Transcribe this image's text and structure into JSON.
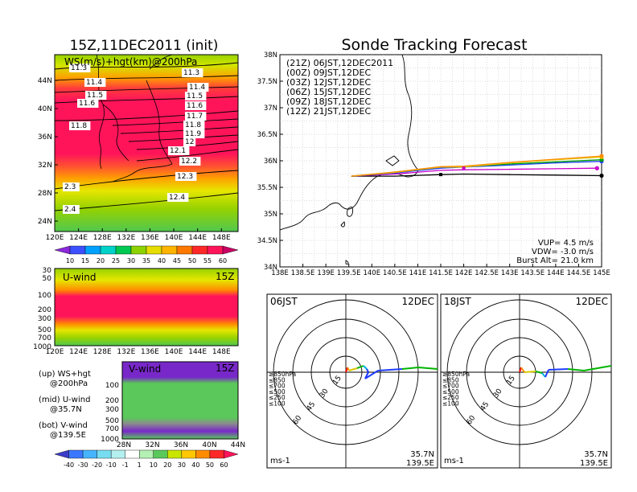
{
  "left_title": "15Z,11DEC2011 (init)",
  "right_title": "Sonde Tracking Forecast",
  "map_panel": {
    "label": "WS(m/s)+hgt(km)@200hPa",
    "lon_ticks": [
      "120E",
      "124E",
      "128E",
      "132E",
      "136E",
      "140E",
      "144E",
      "148E"
    ],
    "lat_ticks": [
      "44N",
      "40N",
      "36N",
      "32N",
      "28N",
      "24N"
    ],
    "contour_labels": [
      "11.3",
      "11.4",
      "11.5",
      "11.6",
      "11.8",
      "11.3",
      "11.4",
      "11.5",
      "11.6",
      "11.7",
      "11.8",
      "11.9",
      "12",
      "12.1",
      "12.2",
      "12.3",
      "2.3",
      "12.4",
      "2.4"
    ]
  },
  "speed_colorbar": [
    "10",
    "15",
    "20",
    "25",
    "30",
    "35",
    "40",
    "45",
    "50",
    "55",
    "60"
  ],
  "uwind_panel": {
    "label": "U-wind",
    "time": "15Z",
    "p_ticks": [
      "30",
      "50",
      "100",
      "200",
      "300",
      "500",
      "700",
      "1000"
    ],
    "lon_ticks": [
      "120E",
      "124E",
      "128E",
      "132E",
      "136E",
      "140E",
      "144E",
      "148E"
    ]
  },
  "vwind_panel": {
    "label": "V-wind",
    "time": "15Z",
    "p_ticks": [
      "100",
      "200",
      "300",
      "500",
      "700",
      "1000"
    ],
    "lat_ticks": [
      "28N",
      "32N",
      "36N",
      "40N",
      "44N"
    ]
  },
  "wind_colorbar": [
    "-40",
    "-30",
    "-20",
    "-10",
    "-1",
    "1",
    "10",
    "20",
    "30",
    "40",
    "50",
    "60"
  ],
  "legend_notes": [
    {
      "l1": "(up) WS+hgt",
      "l2": "@200hPa"
    },
    {
      "l1": "(mid) U-wind",
      "l2": "@35.7N"
    },
    {
      "l1": "(bot) V-wind",
      "l2": "@139.5E"
    }
  ],
  "track_panel": {
    "x_ticks": [
      "138E",
      "138.5E",
      "139E",
      "139.5E",
      "140E",
      "140.5E",
      "141E",
      "141.5E",
      "142E",
      "142.5E",
      "143E",
      "143.5E",
      "144E",
      "144.5E",
      "145E"
    ],
    "y_ticks": [
      "38N",
      "37.5N",
      "37N",
      "36.5N",
      "36N",
      "35.5N",
      "35N",
      "34.5N",
      "34N"
    ],
    "info": [
      "VUP= 4.5 m/s",
      "VDW= -3.0 m/s",
      "Burst Alt= 21.0 km"
    ]
  },
  "chart_data": {
    "type": "line",
    "title": "Sonde Tracking Forecast",
    "xlim": [
      138,
      145
    ],
    "ylim": [
      34,
      38
    ],
    "series": [
      {
        "name": "(21Z)  06JST,12DEC2011",
        "color": "#000000",
        "x": [
          139.55,
          140.5,
          141.5,
          142.0,
          143.0,
          144.0,
          145.0
        ],
        "y": [
          35.71,
          35.71,
          35.74,
          35.75,
          35.74,
          35.73,
          35.72
        ]
      },
      {
        "name": "(00Z)  09JST,12DEC",
        "color": "#c800c8",
        "x": [
          139.55,
          140.5,
          141.5,
          142.0,
          143.0,
          144.0,
          144.9
        ],
        "y": [
          35.71,
          35.75,
          35.82,
          35.83,
          35.84,
          35.85,
          35.86
        ]
      },
      {
        "name": "(03Z)  12JST,12DEC",
        "color": "#1e3cff",
        "x": [
          139.55,
          140.5,
          141.5,
          142.0,
          143.0,
          144.0,
          145.0
        ],
        "y": [
          35.71,
          35.77,
          35.86,
          35.88,
          35.92,
          35.96,
          35.99
        ]
      },
      {
        "name": "(06Z)  15JST,12DEC",
        "color": "#00a000",
        "x": [
          139.55,
          140.5,
          141.5,
          142.0,
          143.0,
          144.0,
          145.0
        ],
        "y": [
          35.71,
          35.78,
          35.88,
          35.89,
          35.94,
          35.98,
          36.02
        ]
      },
      {
        "name": "(09Z)  18JST,12DEC",
        "color": "#dcc800",
        "x": [
          139.55,
          140.5,
          141.5,
          142.0,
          143.0,
          144.0,
          145.0
        ],
        "y": [
          35.71,
          35.78,
          35.88,
          35.88,
          35.96,
          36.02,
          36.07
        ]
      },
      {
        "name": "(12Z)  21JST,12DEC",
        "color": "#ff8c00",
        "x": [
          139.55,
          140.5,
          141.5,
          142.0,
          143.0,
          144.0,
          145.0
        ],
        "y": [
          35.71,
          35.79,
          35.89,
          35.9,
          35.97,
          36.03,
          36.09
        ]
      }
    ]
  },
  "hodographs": [
    {
      "time": "06JST",
      "date": "12DEC",
      "loc1": "35.7N",
      "loc2": "139.5E",
      "unit": "ms-1",
      "ring_labels": [
        "15",
        "30",
        "45",
        "60"
      ],
      "levels": [
        "≥850hPa",
        "≤850",
        "≤700",
        "≤500",
        "≤250",
        "≤100"
      ]
    },
    {
      "time": "18JST",
      "date": "12DEC",
      "loc1": "35.7N",
      "loc2": "139.5E",
      "unit": "ms-1",
      "ring_labels": [
        "15",
        "30",
        "45",
        "60"
      ],
      "levels": [
        "≥850hPa",
        "≤850",
        "≤700",
        "≤500",
        "≤250",
        "≤100"
      ]
    }
  ],
  "colors": {
    "level_red": "#ff0000",
    "level_orange": "#ff8c00",
    "level_yellow": "#dcc800",
    "level_green": "#00b400",
    "level_cyan": "#00b4dc",
    "level_blue": "#1e3cff"
  }
}
